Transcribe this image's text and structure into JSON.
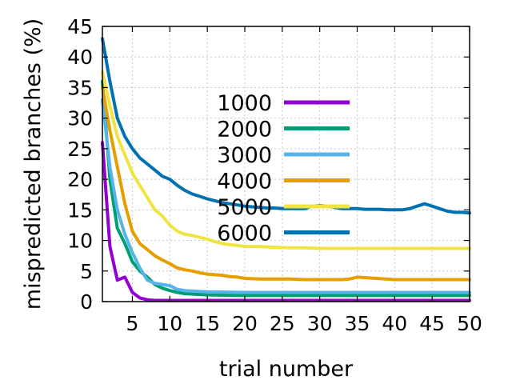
{
  "chart_data": {
    "type": "line",
    "xlabel": "trial number",
    "ylabel": "mispredicted branches (%)",
    "xlim": [
      1,
      50
    ],
    "ylim": [
      0,
      45
    ],
    "xticks": [
      5,
      10,
      15,
      20,
      25,
      30,
      35,
      40,
      45,
      50
    ],
    "yticks": [
      0,
      5,
      10,
      15,
      20,
      25,
      30,
      35,
      40,
      45
    ],
    "grid": true,
    "legend_position": "center",
    "series": [
      {
        "name": "1000",
        "color": "#9400d3",
        "x": [
          1,
          2,
          3,
          4,
          5,
          6,
          7,
          8,
          9,
          10,
          15,
          20,
          25,
          30,
          35,
          40,
          45,
          50
        ],
        "y": [
          26,
          9,
          3.5,
          4,
          1.5,
          0.6,
          0.3,
          0.2,
          0.2,
          0.2,
          0.2,
          0.2,
          0.2,
          0.2,
          0.2,
          0.2,
          0.2,
          0.2
        ]
      },
      {
        "name": "2000",
        "color": "#009e73",
        "x": [
          1,
          2,
          3,
          4,
          5,
          6,
          7,
          8,
          9,
          10,
          11,
          12,
          15,
          20,
          25,
          30,
          35,
          40,
          45,
          50
        ],
        "y": [
          36,
          20,
          12,
          9.5,
          6.5,
          5,
          4,
          2.8,
          2.2,
          1.8,
          1.5,
          1.3,
          1.1,
          1.0,
          1.0,
          1.0,
          1.0,
          1.0,
          1.0,
          1.0
        ]
      },
      {
        "name": "3000",
        "color": "#56b4e9",
        "x": [
          1,
          2,
          3,
          4,
          5,
          6,
          7,
          8,
          9,
          10,
          11,
          12,
          15,
          20,
          25,
          30,
          35,
          40,
          45,
          50
        ],
        "y": [
          33,
          22,
          15,
          11,
          8,
          5.5,
          3.5,
          3.0,
          2.8,
          2.6,
          2.0,
          1.8,
          1.6,
          1.5,
          1.5,
          1.5,
          1.5,
          1.5,
          1.5,
          1.5
        ]
      },
      {
        "name": "4000",
        "color": "#e69f00",
        "x": [
          1,
          2,
          3,
          4,
          5,
          6,
          7,
          8,
          9,
          10,
          11,
          12,
          13,
          14,
          15,
          16,
          17,
          18,
          19,
          20,
          22,
          24,
          26,
          28,
          30,
          33,
          34,
          35,
          40,
          45,
          50
        ],
        "y": [
          35,
          28,
          22,
          16,
          11.5,
          9.5,
          8.5,
          7.5,
          6.8,
          6.2,
          5.5,
          5.2,
          5.0,
          4.7,
          4.5,
          4.4,
          4.3,
          4.1,
          4.0,
          3.8,
          3.7,
          3.7,
          3.7,
          3.6,
          3.6,
          3.6,
          3.7,
          4.0,
          3.6,
          3.6,
          3.6
        ]
      },
      {
        "name": "5000",
        "color": "#f0e442",
        "x": [
          1,
          2,
          3,
          4,
          5,
          6,
          7,
          8,
          9,
          10,
          11,
          12,
          13,
          14,
          15,
          16,
          17,
          18,
          19,
          20,
          22,
          24,
          26,
          28,
          30,
          35,
          40,
          45,
          50
        ],
        "y": [
          37.5,
          32,
          27,
          24,
          21,
          19,
          17,
          15,
          14,
          12.5,
          11.5,
          11,
          10.8,
          10.5,
          10.2,
          9.8,
          9.5,
          9.3,
          9.2,
          9.0,
          9.0,
          8.9,
          8.8,
          8.8,
          8.7,
          8.7,
          8.7,
          8.7,
          8.7
        ]
      },
      {
        "name": "6000",
        "color": "#0072b2",
        "x": [
          1,
          2,
          3,
          4,
          5,
          6,
          7,
          8,
          9,
          10,
          11,
          12,
          13,
          14,
          15,
          16,
          17,
          18,
          19,
          20,
          21,
          22,
          23,
          24,
          25,
          26,
          27,
          28,
          29,
          30,
          31,
          32,
          33,
          34,
          35,
          36,
          37,
          38,
          39,
          40,
          41,
          42,
          43,
          44,
          45,
          46,
          47,
          48,
          49,
          50
        ],
        "y": [
          43,
          36,
          30,
          27,
          25,
          23.5,
          22.5,
          21.5,
          20.5,
          20,
          19,
          18.2,
          17.6,
          17.2,
          16.8,
          16.5,
          16.2,
          16.0,
          15.8,
          15.6,
          15.5,
          15.4,
          15.3,
          15.3,
          15.2,
          15.2,
          15.2,
          15.2,
          15.6,
          15.7,
          15.6,
          15.4,
          15.2,
          15.2,
          15.2,
          15.1,
          15.1,
          15.1,
          15.0,
          15.0,
          15.0,
          15.2,
          15.6,
          16.0,
          15.6,
          15.2,
          14.8,
          14.6,
          14.6,
          14.5
        ]
      }
    ]
  }
}
